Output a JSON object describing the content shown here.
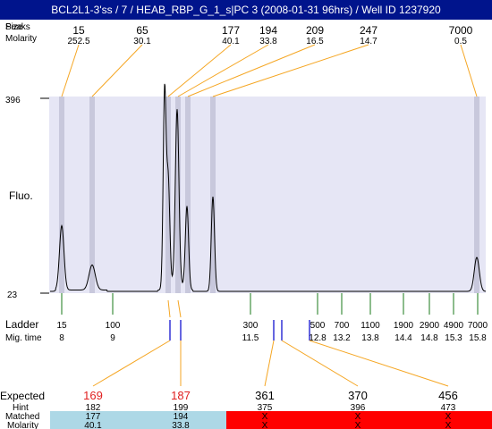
{
  "title": "BCL2L1-3'ss / 7 / HEAB_RBP_G_1_s|PC 3 (2008-01-31 96hrs) / Well ID 1237920",
  "header_rows": {
    "size_label": "Size",
    "peaks_label": "Peaks",
    "molarity_label": "Molarity"
  },
  "fluo_axis": {
    "label": "Fluo.",
    "max_label": "396",
    "min_label": "23"
  },
  "ladder_labels": {
    "ladder": "Ladder",
    "mig_time": "Mig. time"
  },
  "expected_labels": {
    "expected": "Expected",
    "hint": "Hint",
    "matched": "Matched",
    "molarity": "Molarity"
  },
  "colors": {
    "title_bg": "#00148c",
    "plot_bg": "#e6e6f5",
    "highlight_band": "#c8c8dc",
    "peak_leader": "#f5a623",
    "ladder_tick": "#1a7a1a",
    "marker": "#0000cc",
    "expected_red": "#e02020",
    "matched_ok": "#add8e6",
    "matched_fail": "#ff0000"
  },
  "chart_data": {
    "type": "line",
    "xlabel": "",
    "ylabel": "Fluo.",
    "ylim": [
      23,
      396
    ],
    "peaks": [
      {
        "size": "15",
        "molarity": "252.5"
      },
      {
        "size": "65",
        "molarity": "30.1"
      },
      {
        "size": "177",
        "molarity": "40.1"
      },
      {
        "size": "194",
        "molarity": "33.8"
      },
      {
        "size": "209",
        "molarity": "16.5"
      },
      {
        "size": "247",
        "molarity": "14.7"
      },
      {
        "size": "7000",
        "molarity": "0.5"
      }
    ],
    "ladder": [
      {
        "size": "15",
        "mig_time": "8"
      },
      {
        "size": "100",
        "mig_time": "9"
      },
      {
        "size": "300",
        "mig_time": "11.5"
      },
      {
        "size": "500",
        "mig_time": "12.8"
      },
      {
        "size": "700",
        "mig_time": "13.2"
      },
      {
        "size": "1100",
        "mig_time": "13.8"
      },
      {
        "size": "1900",
        "mig_time": "14.4"
      },
      {
        "size": "2900",
        "mig_time": "14.8"
      },
      {
        "size": "4900",
        "mig_time": "15.3"
      },
      {
        "size": "7000",
        "mig_time": "15.8"
      }
    ],
    "expected": [
      {
        "expected": "169",
        "hint": "182",
        "matched": "177",
        "molarity": "40.1",
        "status": "matched",
        "highlight": true
      },
      {
        "expected": "187",
        "hint": "199",
        "matched": "194",
        "molarity": "33.8",
        "status": "matched",
        "highlight": true
      },
      {
        "expected": "361",
        "hint": "375",
        "matched": "X",
        "molarity": "X",
        "status": "missing",
        "highlight": false
      },
      {
        "expected": "370",
        "hint": "396",
        "matched": "X",
        "molarity": "X",
        "status": "missing",
        "highlight": false
      },
      {
        "expected": "456",
        "hint": "473",
        "matched": "X",
        "molarity": "X",
        "status": "missing",
        "highlight": false
      }
    ]
  }
}
